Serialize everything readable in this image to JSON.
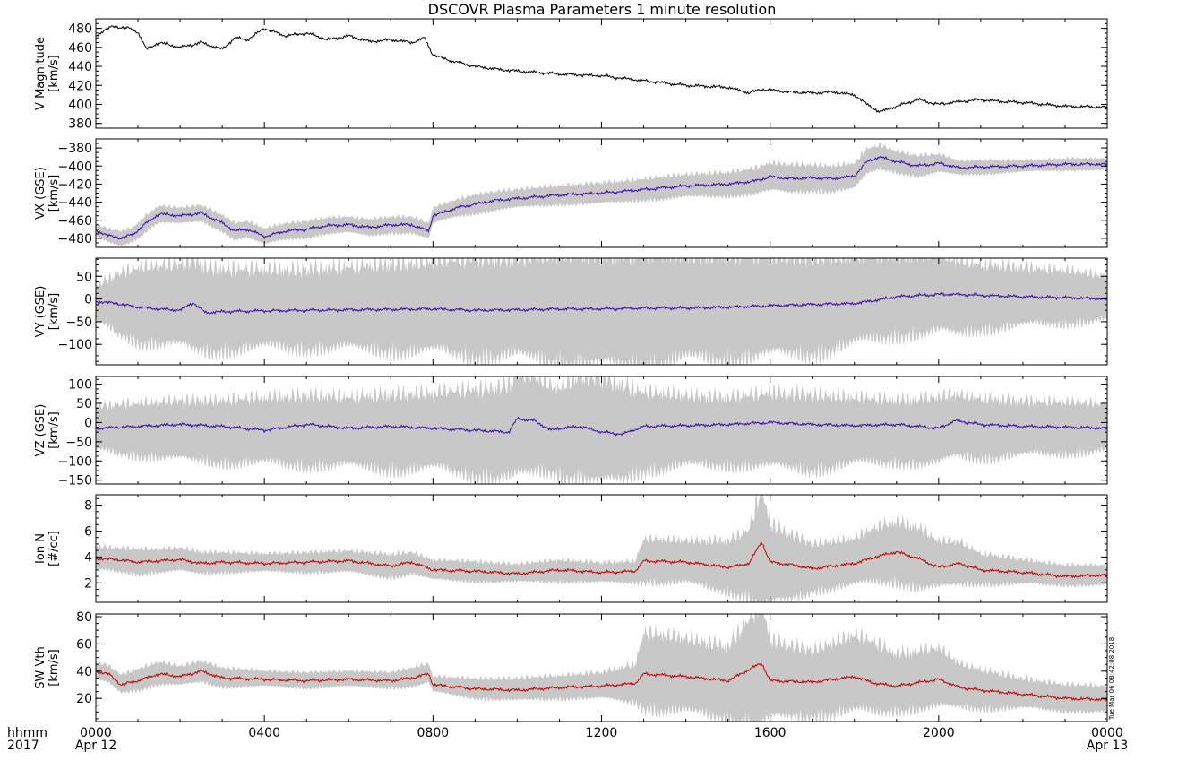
{
  "title": "DSCOVR Plasma Parameters 1 minute resolution",
  "stamp": "Tue Mar 06 08:42:08 2018",
  "x_axis": {
    "row1_label": "hhmm",
    "row2_label": "2017",
    "ticks": [
      "0000",
      "0400",
      "0800",
      "1200",
      "1600",
      "2000",
      "0000"
    ],
    "start_date": "Apr 12",
    "end_date": "Apr 13"
  },
  "colors": {
    "magnitude_line": "#000000",
    "velocity_line": "#3a0ca8",
    "density_line": "#c00000",
    "spread_band": "#c8c8c8"
  },
  "chart_data": [
    {
      "type": "line",
      "id": "vmag",
      "ylabel_line1": "V Magnitude",
      "ylabel_line2": "[km/s]",
      "ylim": [
        375,
        490
      ],
      "yticks": [
        380,
        400,
        420,
        440,
        460,
        480
      ],
      "has_band": false,
      "color_key": "magnitude_line",
      "x_hours": [
        0,
        0.2,
        0.4,
        0.6,
        0.8,
        1.0,
        1.2,
        1.5,
        2.0,
        2.5,
        3.0,
        3.3,
        3.6,
        4.0,
        4.5,
        5.0,
        5.5,
        6.0,
        6.5,
        7.0,
        7.5,
        7.8,
        8.0,
        8.5,
        9.0,
        9.5,
        10.0,
        11.0,
        12.0,
        13.0,
        14.0,
        15.0,
        15.5,
        15.8,
        16.0,
        16.5,
        17.0,
        17.5,
        18.0,
        18.3,
        18.6,
        19.0,
        19.5,
        20.0,
        20.5,
        21.0,
        21.5,
        22.0,
        22.5,
        23.0,
        24.0
      ],
      "values": [
        472,
        478,
        482,
        481,
        480,
        476,
        458,
        465,
        460,
        465,
        458,
        470,
        468,
        480,
        472,
        475,
        468,
        472,
        466,
        468,
        465,
        470,
        452,
        445,
        440,
        437,
        435,
        432,
        430,
        425,
        420,
        418,
        412,
        416,
        415,
        413,
        412,
        413,
        410,
        400,
        392,
        398,
        405,
        400,
        403,
        405,
        403,
        402,
        400,
        398,
        397
      ],
      "ymin": [],
      "ymax": []
    },
    {
      "type": "line",
      "id": "vx",
      "ylabel_line1": "VX (GSE)",
      "ylabel_line2": "[km/s]",
      "ylim": [
        -490,
        -370
      ],
      "yticks": [
        -480,
        -460,
        -440,
        -420,
        -400,
        -380
      ],
      "has_band": true,
      "color_key": "velocity_line",
      "x_hours": [
        0,
        0.3,
        0.6,
        0.9,
        1.2,
        1.5,
        2.0,
        2.5,
        3.0,
        3.3,
        3.6,
        4.0,
        4.5,
        5.0,
        5.5,
        6.0,
        6.5,
        7.0,
        7.5,
        7.9,
        8.0,
        8.5,
        9.0,
        9.5,
        10.0,
        11.0,
        12.0,
        13.0,
        14.0,
        15.0,
        15.6,
        16.0,
        16.5,
        17.0,
        17.5,
        18.0,
        18.3,
        18.6,
        19.0,
        19.5,
        20.0,
        20.5,
        21.0,
        22.0,
        23.0,
        24.0
      ],
      "values": [
        -471,
        -477,
        -480,
        -475,
        -463,
        -453,
        -455,
        -452,
        -463,
        -472,
        -470,
        -478,
        -472,
        -470,
        -466,
        -465,
        -468,
        -465,
        -465,
        -472,
        -455,
        -447,
        -442,
        -438,
        -436,
        -432,
        -430,
        -426,
        -422,
        -420,
        -417,
        -412,
        -414,
        -413,
        -414,
        -411,
        -395,
        -390,
        -395,
        -400,
        -397,
        -402,
        -401,
        -400,
        -398,
        -398
      ],
      "ymin": [
        -476,
        -483,
        -486,
        -481,
        -470,
        -460,
        -462,
        -459,
        -470,
        -479,
        -477,
        -485,
        -479,
        -477,
        -473,
        -472,
        -475,
        -472,
        -472,
        -479,
        -462,
        -454,
        -450,
        -446,
        -444,
        -440,
        -439,
        -435,
        -432,
        -430,
        -428,
        -424,
        -426,
        -424,
        -425,
        -422,
        -406,
        -400,
        -404,
        -409,
        -405,
        -408,
        -407,
        -405,
        -403,
        -403
      ],
      "ymax": [
        -466,
        -471,
        -474,
        -469,
        -456,
        -446,
        -448,
        -445,
        -456,
        -465,
        -463,
        -471,
        -465,
        -463,
        -459,
        -458,
        -461,
        -458,
        -458,
        -465,
        -448,
        -440,
        -434,
        -430,
        -428,
        -424,
        -421,
        -417,
        -412,
        -410,
        -406,
        -400,
        -402,
        -402,
        -403,
        -400,
        -384,
        -380,
        -386,
        -391,
        -389,
        -396,
        -395,
        -395,
        -393,
        -393
      ]
    },
    {
      "type": "line",
      "id": "vy",
      "ylabel_line1": "VY (GSE)",
      "ylabel_line2": "[km/s]",
      "ylim": [
        -145,
        90
      ],
      "yticks": [
        -100,
        -50,
        0,
        50
      ],
      "has_band": true,
      "color_key": "velocity_line",
      "x_hours": [
        0,
        0.5,
        1.0,
        1.5,
        2.0,
        2.3,
        2.6,
        3.0,
        4.0,
        5.0,
        6.0,
        7.0,
        8.0,
        9.0,
        10.0,
        11.0,
        12.0,
        13.0,
        14.0,
        15.0,
        16.0,
        17.0,
        18.0,
        18.5,
        19.0,
        20.0,
        20.5,
        21.0,
        22.0,
        23.0,
        24.0
      ],
      "values": [
        -5,
        -10,
        -18,
        -22,
        -25,
        -8,
        -30,
        -28,
        -26,
        -25,
        -24,
        -23,
        -22,
        -25,
        -24,
        -22,
        -22,
        -20,
        -20,
        -18,
        -15,
        -12,
        -10,
        -3,
        5,
        10,
        10,
        8,
        5,
        3,
        0
      ],
      "ymin": [
        -40,
        -60,
        -75,
        -80,
        -85,
        -90,
        -95,
        -92,
        -90,
        -88,
        -90,
        -92,
        -95,
        -100,
        -105,
        -110,
        -120,
        -115,
        -110,
        -105,
        -100,
        -95,
        -80,
        -70,
        -60,
        -55,
        -60,
        -50,
        -45,
        -40,
        -35
      ],
      "ymax": [
        20,
        40,
        50,
        55,
        55,
        65,
        50,
        45,
        45,
        45,
        50,
        55,
        60,
        65,
        65,
        70,
        70,
        72,
        70,
        70,
        70,
        68,
        70,
        75,
        75,
        78,
        65,
        60,
        55,
        50,
        40
      ]
    },
    {
      "type": "line",
      "id": "vz",
      "ylabel_line1": "VZ (GSE)",
      "ylabel_line2": "[km/s]",
      "ylim": [
        -160,
        120
      ],
      "yticks": [
        -150,
        -100,
        -50,
        0,
        50,
        100
      ],
      "has_band": true,
      "color_key": "velocity_line",
      "x_hours": [
        0,
        1.0,
        2.0,
        3.0,
        4.0,
        5.0,
        6.0,
        7.0,
        8.0,
        9.0,
        9.8,
        10.0,
        10.4,
        10.8,
        11.0,
        11.5,
        12.0,
        12.5,
        13.0,
        14.0,
        15.0,
        16.0,
        17.0,
        18.0,
        19.0,
        20.0,
        20.4,
        21.0,
        22.0,
        23.0,
        24.0
      ],
      "values": [
        -15,
        -10,
        -5,
        -10,
        -20,
        -5,
        -15,
        -10,
        -15,
        -20,
        -25,
        10,
        5,
        -20,
        -15,
        -10,
        -25,
        -30,
        -10,
        -8,
        -5,
        0,
        -5,
        -8,
        -5,
        -15,
        5,
        -5,
        -10,
        -12,
        -15
      ],
      "ymin": [
        -60,
        -70,
        -80,
        -85,
        -90,
        -90,
        -95,
        -100,
        -100,
        -110,
        -120,
        -115,
        -105,
        -100,
        -110,
        -115,
        -130,
        -120,
        -100,
        -95,
        -90,
        -95,
        -100,
        -90,
        -85,
        -90,
        -70,
        -75,
        -70,
        -65,
        -60
      ],
      "ymax": [
        30,
        35,
        40,
        40,
        45,
        50,
        45,
        50,
        55,
        60,
        70,
        100,
        90,
        70,
        65,
        90,
        85,
        70,
        55,
        50,
        45,
        55,
        50,
        45,
        40,
        45,
        55,
        45,
        40,
        38,
        35
      ]
    },
    {
      "type": "line",
      "id": "density",
      "ylabel_line1": "Ion N",
      "ylabel_line2": "[#/cc]",
      "ylim": [
        0.5,
        8.8
      ],
      "yticks": [
        2,
        4,
        6,
        8
      ],
      "has_band": true,
      "color_key": "density_line",
      "x_hours": [
        0,
        0.5,
        1.0,
        1.5,
        2.0,
        2.5,
        3.0,
        4.0,
        5.0,
        6.0,
        7.0,
        7.5,
        8.0,
        9.0,
        10.0,
        11.0,
        12.0,
        12.8,
        13.0,
        14.0,
        15.0,
        15.5,
        15.8,
        16.0,
        16.5,
        17.0,
        18.0,
        18.5,
        19.0,
        19.5,
        20.0,
        20.5,
        21.0,
        22.0,
        23.0,
        24.0
      ],
      "values": [
        3.9,
        3.8,
        3.6,
        3.7,
        3.8,
        3.5,
        3.6,
        3.5,
        3.6,
        3.7,
        3.3,
        3.6,
        3.0,
        2.9,
        2.7,
        3.0,
        2.8,
        2.9,
        3.7,
        3.6,
        3.2,
        3.5,
        5.2,
        3.6,
        3.4,
        3.1,
        3.5,
        4.0,
        4.4,
        3.9,
        3.2,
        3.5,
        3.0,
        2.8,
        2.5,
        2.6
      ],
      "ymin": [
        3.2,
        3.1,
        2.9,
        3.0,
        3.1,
        2.9,
        3.0,
        3.0,
        3.0,
        3.0,
        2.6,
        2.9,
        2.4,
        2.3,
        2.2,
        2.3,
        2.2,
        2.2,
        2.5,
        2.3,
        1.8,
        1.5,
        1.2,
        1.0,
        1.3,
        1.8,
        2.2,
        2.5,
        2.6,
        2.2,
        2.0,
        2.2,
        2.2,
        2.1,
        2.0,
        2.0
      ],
      "ymax": [
        4.6,
        4.5,
        4.4,
        4.4,
        4.5,
        4.2,
        4.2,
        4.1,
        4.2,
        4.3,
        4.0,
        4.2,
        3.6,
        3.5,
        3.3,
        3.6,
        3.4,
        3.5,
        5.0,
        4.9,
        4.8,
        5.5,
        8.3,
        5.8,
        5.2,
        4.6,
        5.0,
        5.8,
        6.2,
        5.8,
        4.8,
        4.8,
        4.0,
        3.6,
        3.2,
        3.2
      ]
    },
    {
      "type": "line",
      "id": "vth",
      "ylabel_line1": "SW Vth",
      "ylabel_line2": "[km/s]",
      "ylim": [
        3,
        82
      ],
      "yticks": [
        20,
        40,
        60,
        80
      ],
      "has_band": true,
      "color_key": "density_line",
      "x_hours": [
        0,
        0.3,
        0.6,
        1.0,
        1.5,
        2.0,
        2.5,
        3.0,
        4.0,
        5.0,
        6.0,
        7.0,
        7.5,
        7.9,
        8.0,
        9.0,
        10.0,
        11.0,
        12.0,
        12.8,
        13.0,
        14.0,
        15.0,
        15.8,
        16.0,
        17.0,
        18.0,
        18.5,
        19.0,
        20.0,
        20.5,
        21.0,
        22.0,
        23.0,
        24.0
      ],
      "values": [
        40,
        38,
        30,
        33,
        38,
        36,
        40,
        35,
        34,
        33,
        34,
        33,
        35,
        38,
        30,
        27,
        26,
        28,
        29,
        31,
        38,
        36,
        33,
        46,
        33,
        32,
        36,
        31,
        29,
        34,
        28,
        26,
        23,
        20,
        19
      ],
      "ymin": [
        35,
        33,
        26,
        28,
        32,
        31,
        34,
        30,
        30,
        29,
        30,
        29,
        30,
        33,
        26,
        22,
        20,
        22,
        22,
        20,
        20,
        15,
        12,
        10,
        11,
        13,
        16,
        15,
        16,
        18,
        17,
        16,
        15,
        13,
        12
      ],
      "ymax": [
        45,
        43,
        36,
        40,
        45,
        42,
        46,
        41,
        39,
        38,
        39,
        38,
        41,
        44,
        35,
        33,
        33,
        35,
        37,
        42,
        62,
        58,
        52,
        80,
        56,
        50,
        60,
        55,
        48,
        52,
        42,
        38,
        32,
        28,
        27
      ]
    }
  ]
}
